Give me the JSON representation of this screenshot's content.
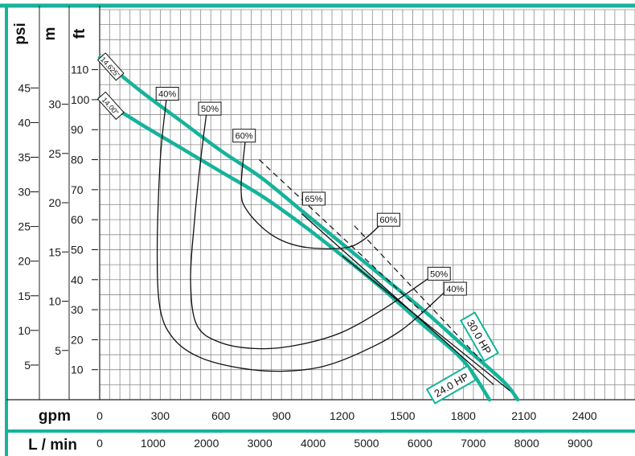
{
  "chart_data": {
    "type": "line",
    "title": "",
    "colors": {
      "curve": "#16b39b",
      "frame": "#16b39b",
      "grid": "#8c8c8c",
      "line": "#111111"
    },
    "axes": {
      "x": {
        "unit": "gpm",
        "range": [
          0,
          2650
        ],
        "ticks": [
          "0",
          "300",
          "600",
          "900",
          "1200",
          "1500",
          "1800",
          "2100",
          "2400"
        ]
      },
      "x2": {
        "unit": "L / min",
        "range": [
          0,
          10030
        ],
        "ticks": [
          "0",
          "1000",
          "2000",
          "3000",
          "4000",
          "5000",
          "6000",
          "7000",
          "8000",
          "9000"
        ]
      },
      "y_ft": {
        "unit": "ft",
        "range": [
          0,
          130
        ],
        "ticks": [
          "10",
          "20",
          "30",
          "40",
          "50",
          "60",
          "70",
          "80",
          "90",
          "100",
          "110"
        ]
      },
      "y_m": {
        "unit": "m",
        "range": [
          0,
          39.6
        ],
        "ticks": [
          "5",
          "10",
          "15",
          "20",
          "25",
          "30"
        ]
      },
      "y_psi": {
        "unit": "psi",
        "range": [
          0,
          56.3
        ],
        "ticks": [
          "5",
          "10",
          "15",
          "20",
          "25",
          "30",
          "35",
          "40",
          "45"
        ]
      },
      "grid": true
    },
    "series": [
      {
        "name": "14.625\"",
        "kind": "impeller",
        "x": [
          0,
          200,
          400,
          600,
          800,
          1000,
          1200,
          1400,
          1600,
          1800,
          2000,
          2070
        ],
        "y": [
          114,
          103,
          93,
          83,
          74,
          63,
          52,
          41,
          30,
          18,
          6,
          0
        ]
      },
      {
        "name": "14.00\"",
        "kind": "impeller",
        "x": [
          0,
          200,
          400,
          600,
          800,
          1000,
          1200,
          1400,
          1600,
          1800,
          1930
        ],
        "y": [
          100.5,
          92,
          84,
          76,
          68,
          58.5,
          48,
          37,
          25,
          13,
          0
        ]
      },
      {
        "name": "40%",
        "kind": "efficiency",
        "x": [
          330,
          300,
          285,
          300,
          370,
          500,
          700,
          900,
          1100,
          1300,
          1500,
          1710
        ],
        "y": [
          100,
          80,
          50,
          30,
          20,
          14,
          10.5,
          9.5,
          11,
          16,
          23.5,
          36
        ]
      },
      {
        "name": "50%",
        "kind": "efficiency",
        "x": [
          530,
          500,
          470,
          450,
          480,
          600,
          800,
          1000,
          1200,
          1400,
          1640
        ],
        "y": [
          96,
          80,
          60,
          40,
          25,
          19,
          17,
          18.5,
          22.5,
          30,
          41
        ]
      },
      {
        "name": "60%",
        "kind": "efficiency",
        "x": [
          720,
          700,
          730,
          850,
          1000,
          1200,
          1300,
          1400
        ],
        "y": [
          86,
          70,
          63,
          55,
          51,
          50.5,
          53,
          59
        ]
      },
      {
        "name": "65%",
        "kind": "efficiency_line",
        "x": [
          790,
          1600
        ],
        "y": [
          80,
          29
        ]
      },
      {
        "name": "60% ",
        "kind": "efficiency_line",
        "x": [
          1260,
          1890
        ],
        "y": [
          58,
          13
        ]
      },
      {
        "name": "30.0 HP",
        "kind": "power",
        "x": [
          1000,
          1950
        ],
        "y": [
          62,
          5
        ]
      },
      {
        "name": "24.0 HP",
        "kind": "power",
        "x": [
          1200,
          2030
        ],
        "y": [
          48,
          3
        ]
      }
    ],
    "curve_labels": [
      {
        "text": "14.625\"",
        "series": "14.625\"",
        "x": 55,
        "y": 111
      },
      {
        "text": "14.00\"",
        "series": "14.00\"",
        "x": 55,
        "y": 98
      },
      {
        "text": "40%",
        "series": "40%",
        "x": 335,
        "y": 102
      },
      {
        "text": "50%",
        "series": "50%",
        "x": 545,
        "y": 97
      },
      {
        "text": "60%",
        "series": "60%",
        "x": 715,
        "y": 88
      },
      {
        "text": "65%",
        "series": "65%",
        "x": 1060,
        "y": 67
      },
      {
        "text": "60%",
        "series": "60% ",
        "x": 1430,
        "y": 60
      },
      {
        "text": "50%",
        "series": "50%",
        "x": 1680,
        "y": 42
      },
      {
        "text": "40%",
        "series": "40%",
        "x": 1760,
        "y": 37
      },
      {
        "text": "30.0 HP",
        "series": "30.0 HP",
        "x": 1880,
        "y": 21
      },
      {
        "text": "24.0 HP",
        "series": "24.0 HP",
        "x": 1740,
        "y": 5
      }
    ]
  }
}
